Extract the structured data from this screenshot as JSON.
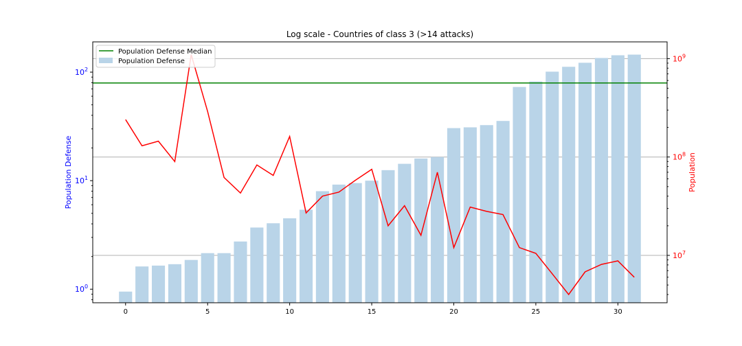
{
  "chart_data": {
    "type": "bar",
    "title": "Log scale - Countries of class 3 (>14 attacks)",
    "xlabel": "",
    "ylabel_left": "Population Defense",
    "ylabel_right": "Population",
    "x_ticks": [
      "0",
      "5",
      "10",
      "15",
      "20",
      "25",
      "30"
    ],
    "x_tick_values": [
      0,
      5,
      10,
      15,
      20,
      25,
      30
    ],
    "xlim": [
      -2,
      33
    ],
    "left_axis": {
      "scale": "log",
      "ylim": [
        0.75,
        190
      ],
      "tick_values": [
        1,
        10,
        100
      ],
      "tick_labels": [
        [
          "10",
          "0"
        ],
        [
          "10",
          "1"
        ],
        [
          "10",
          "2"
        ]
      ],
      "color": "#0000ff"
    },
    "right_axis": {
      "scale": "log",
      "ylim": [
        3300000,
        1480000000
      ],
      "tick_values": [
        10000000,
        100000000,
        1000000000
      ],
      "tick_labels": [
        [
          "10",
          "7"
        ],
        [
          "10",
          "8"
        ],
        [
          "10",
          "9"
        ]
      ],
      "color": "#ff0000"
    },
    "grid": "right-axis horizontal",
    "legend_position": "top-left",
    "series": [
      {
        "name": "Population Defense",
        "kind": "bar",
        "axis": "left",
        "color": "#b9d4e8",
        "x": [
          0,
          1,
          2,
          3,
          4,
          5,
          6,
          7,
          8,
          9,
          10,
          11,
          12,
          13,
          14,
          15,
          16,
          17,
          18,
          19,
          20,
          21,
          22,
          23,
          24,
          25,
          26,
          27,
          28,
          29,
          30,
          31
        ],
        "values": [
          0.95,
          1.62,
          1.65,
          1.7,
          1.86,
          2.15,
          2.15,
          2.75,
          3.7,
          4.05,
          4.5,
          5.4,
          8,
          9.2,
          9.5,
          10,
          12.5,
          14.3,
          16,
          16.5,
          30.5,
          31,
          32.5,
          35.5,
          73,
          82,
          101,
          112,
          122,
          135,
          143,
          145
        ]
      },
      {
        "name": "Population Defense Median",
        "kind": "hline",
        "axis": "left",
        "color": "#008000",
        "value": 79.5
      },
      {
        "name": "Population",
        "kind": "line",
        "axis": "right",
        "color": "#ff0000",
        "x": [
          0,
          1,
          2,
          3,
          4,
          5,
          6,
          7,
          8,
          9,
          10,
          11,
          12,
          13,
          14,
          15,
          16,
          17,
          18,
          19,
          20,
          21,
          22,
          23,
          24,
          25,
          26,
          27,
          28,
          29,
          30,
          31
        ],
        "values": [
          240000000,
          130000000,
          145000000,
          90000000,
          1100000000,
          290000000,
          62000000,
          43000000,
          83000000,
          65000000,
          162000000,
          27000000,
          40000000,
          44000000,
          58000000,
          75000000,
          20000000,
          32000000,
          16000000,
          70000000,
          12000000,
          31000000,
          28000000,
          26000000,
          12000000,
          10500000,
          6500000,
          4000000,
          6800000,
          8100000,
          8800000,
          6000000
        ]
      }
    ]
  }
}
